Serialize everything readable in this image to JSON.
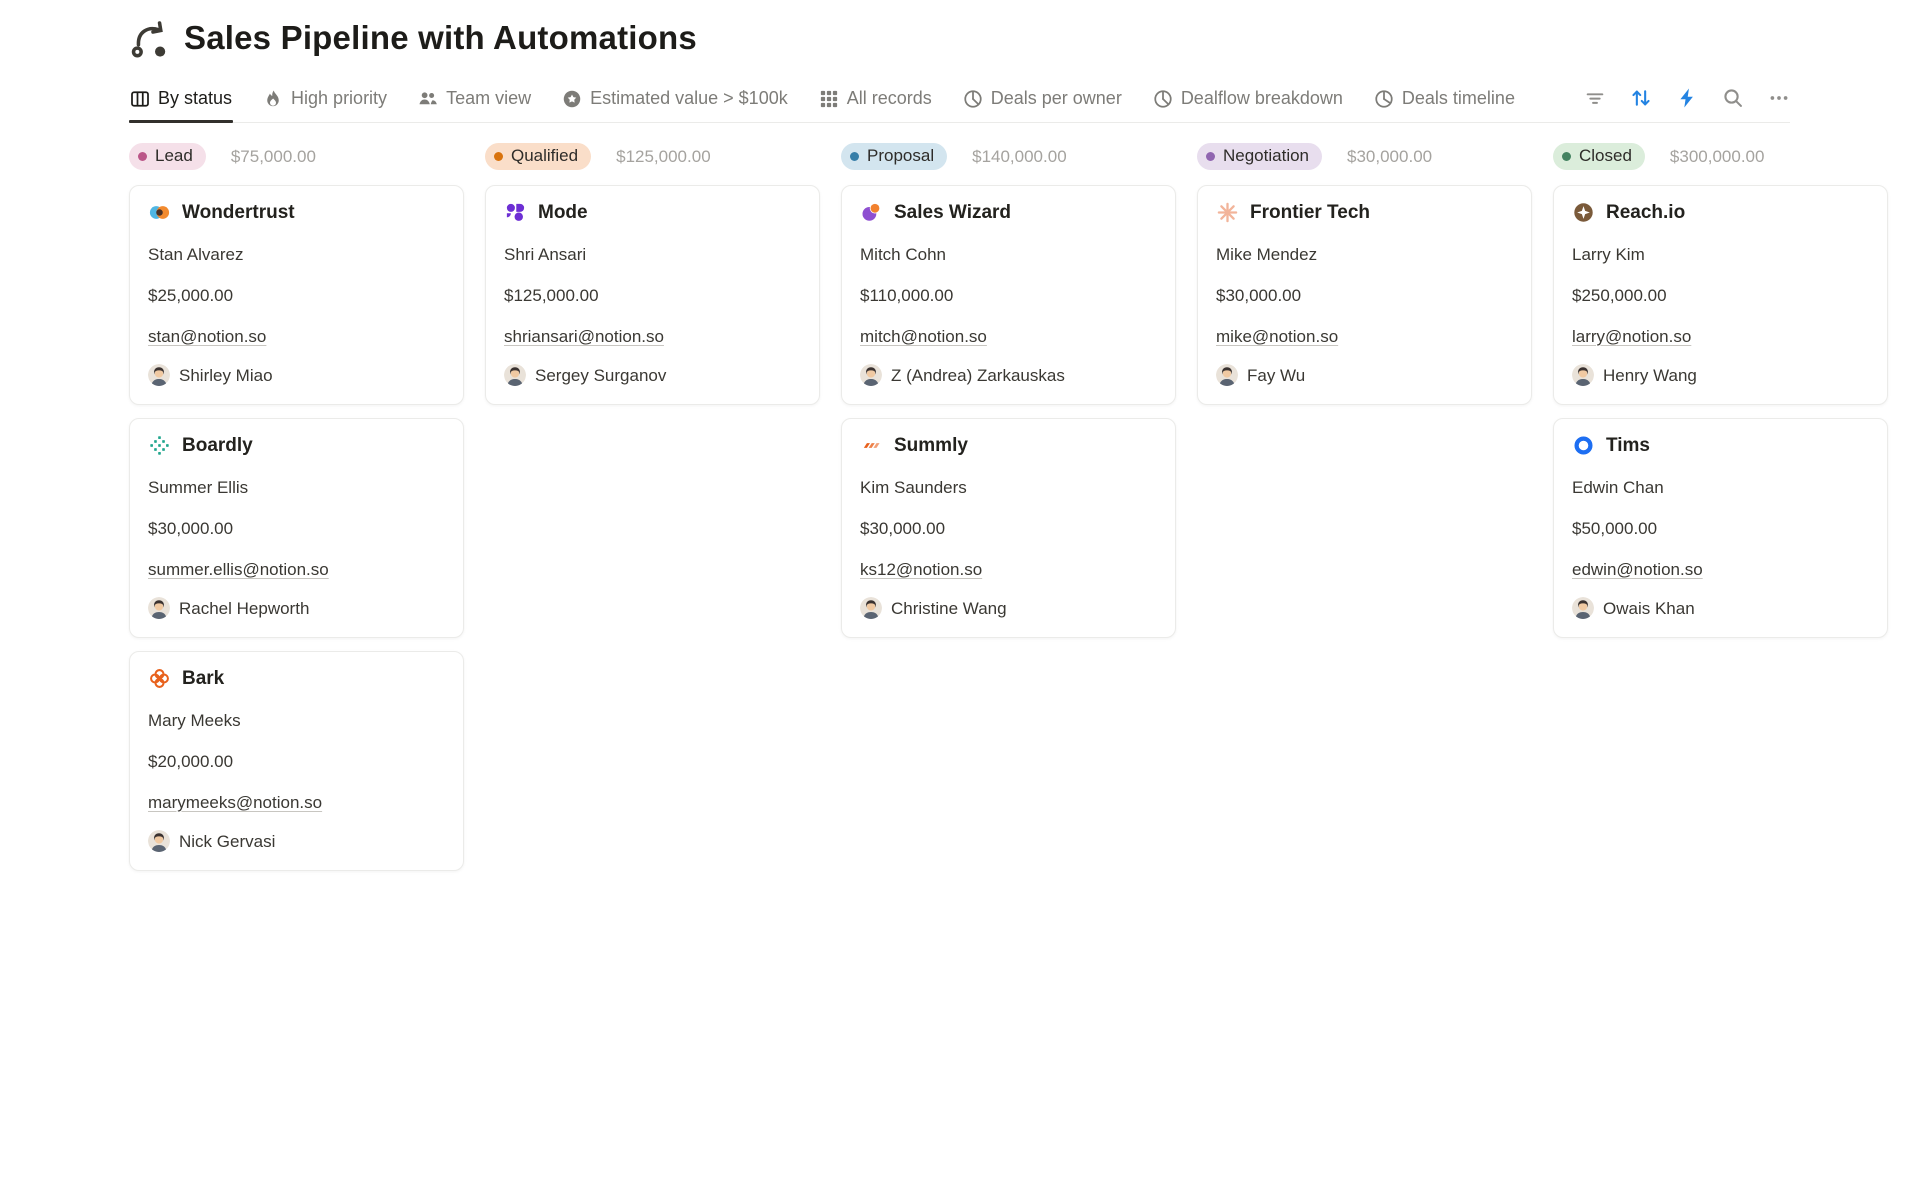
{
  "page": {
    "title": "Sales Pipeline with Automations",
    "title_icon": "automation-arrow-icon"
  },
  "tabs": [
    {
      "label": "By status",
      "icon": "board-icon",
      "active": true
    },
    {
      "label": "High priority",
      "icon": "fire-icon",
      "active": false
    },
    {
      "label": "Team view",
      "icon": "people-icon",
      "active": false
    },
    {
      "label": "Estimated value > $100k",
      "icon": "badge-star-icon",
      "active": false
    },
    {
      "label": "All records",
      "icon": "grid-icon",
      "active": false
    },
    {
      "label": "Deals per owner",
      "icon": "pie-icon",
      "active": false
    },
    {
      "label": "Dealflow breakdown",
      "icon": "pie-icon",
      "active": false
    },
    {
      "label": "Deals timeline",
      "icon": "clock-icon",
      "active": false
    }
  ],
  "toolbar": [
    {
      "name": "filter-button",
      "icon": "filter-icon",
      "color": "#8f8e8b"
    },
    {
      "name": "sort-button",
      "icon": "sort-icon",
      "color": "#2383e2"
    },
    {
      "name": "automations-button",
      "icon": "lightning-icon",
      "color": "#2383e2"
    },
    {
      "name": "search-button",
      "icon": "search-icon",
      "color": "#8f8e8b"
    },
    {
      "name": "more-button",
      "icon": "more-icon",
      "color": "#8f8e8b"
    }
  ],
  "board": {
    "columns": [
      {
        "status": "Lead",
        "pill_bg": "#f5e0e9",
        "dot_color": "#bb5688",
        "total": "$75,000.00",
        "cards": [
          {
            "company": "Wondertrust",
            "logo": "wondertrust-logo",
            "contact": "Stan Alvarez",
            "value": "$25,000.00",
            "email": "stan@notion.so",
            "owner": "Shirley Miao"
          },
          {
            "company": "Boardly",
            "logo": "boardly-logo",
            "contact": "Summer Ellis",
            "value": "$30,000.00",
            "email": "summer.ellis@notion.so",
            "owner": "Rachel Hepworth"
          },
          {
            "company": "Bark",
            "logo": "bark-logo",
            "contact": "Mary Meeks",
            "value": "$20,000.00",
            "email": "marymeeks@notion.so",
            "owner": "Nick Gervasi"
          }
        ]
      },
      {
        "status": "Qualified",
        "pill_bg": "#fadec9",
        "dot_color": "#d9730d",
        "total": "$125,000.00",
        "cards": [
          {
            "company": "Mode",
            "logo": "mode-logo",
            "contact": "Shri Ansari",
            "value": "$125,000.00",
            "email": "shriansari@notion.so",
            "owner": "Sergey Surganov"
          }
        ]
      },
      {
        "status": "Proposal",
        "pill_bg": "#d3e5ef",
        "dot_color": "#377ea8",
        "total": "$140,000.00",
        "cards": [
          {
            "company": "Sales Wizard",
            "logo": "sales-wizard-logo",
            "contact": "Mitch Cohn",
            "value": "$110,000.00",
            "email": "mitch@notion.so",
            "owner": "Z (Andrea) Zarkauskas"
          },
          {
            "company": "Summly",
            "logo": "summly-logo",
            "contact": "Kim Saunders",
            "value": "$30,000.00",
            "email": "ks12@notion.so",
            "owner": "Christine Wang"
          }
        ]
      },
      {
        "status": "Negotiation",
        "pill_bg": "#e8deee",
        "dot_color": "#9065b0",
        "total": "$30,000.00",
        "cards": [
          {
            "company": "Frontier Tech",
            "logo": "frontier-tech-logo",
            "contact": "Mike Mendez",
            "value": "$30,000.00",
            "email": "mike@notion.so",
            "owner": "Fay Wu"
          }
        ]
      },
      {
        "status": "Closed",
        "pill_bg": "#dbeddb",
        "dot_color": "#448361",
        "total": "$300,000.00",
        "cards": [
          {
            "company": "Reach.io",
            "logo": "reachio-logo",
            "contact": "Larry Kim",
            "value": "$250,000.00",
            "email": "larry@notion.so",
            "owner": "Henry Wang"
          },
          {
            "company": "Tims",
            "logo": "tims-logo",
            "contact": "Edwin Chan",
            "value": "$50,000.00",
            "email": "edwin@notion.so",
            "owner": "Owais Khan"
          }
        ]
      }
    ]
  }
}
